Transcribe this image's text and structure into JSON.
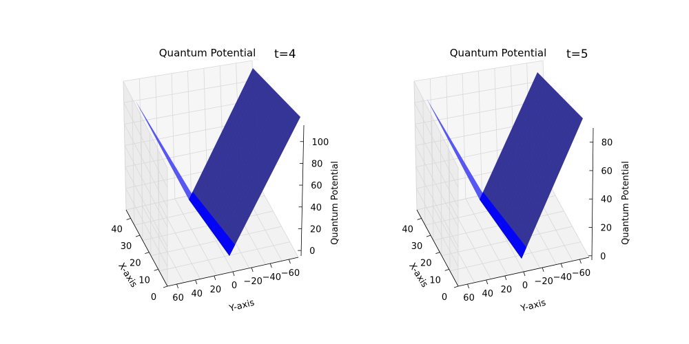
{
  "chart_data": [
    {
      "type": "surface3d",
      "title": "Quantum Potential",
      "annotation": "t=4",
      "xlabel": "X-axis",
      "ylabel": "Y-axis",
      "zlabel": "Quantum Potential",
      "x_ticks": [
        "0",
        "10",
        "20",
        "30",
        "40"
      ],
      "y_ticks": [
        "60",
        "40",
        "20",
        "0",
        "−20",
        "−40",
        "−60"
      ],
      "z_ticks": [
        "0",
        "20",
        "40",
        "60",
        "80",
        "100"
      ],
      "xlim": [
        0,
        45
      ],
      "ylim": [
        -70,
        70
      ],
      "zlim": [
        -5,
        115
      ],
      "surface": {
        "description_formula_values": {
          "z_at_y_min": 118,
          "z_at_y_zero": 0,
          "z_at_y_max": 80
        }
      },
      "colors": {
        "light_face": "#3b3bf5",
        "dark_face": "#2a2a8f",
        "grid": "#d8d8d8",
        "pane": "#f2f2f2"
      }
    },
    {
      "type": "surface3d",
      "title": "Quantum Potential",
      "annotation": "t=5",
      "xlabel": "X-axis",
      "ylabel": "Y-axis",
      "zlabel": "Quantum Potential",
      "x_ticks": [
        "0",
        "10",
        "20",
        "30",
        "40"
      ],
      "y_ticks": [
        "60",
        "40",
        "20",
        "0",
        "−20",
        "−40",
        "−60"
      ],
      "z_ticks": [
        "0",
        "20",
        "40",
        "60",
        "80"
      ],
      "xlim": [
        0,
        45
      ],
      "ylim": [
        -70,
        70
      ],
      "zlim": [
        -3,
        90
      ],
      "surface": {
        "description_formula_values": {
          "z_at_y_min": 92,
          "z_at_y_zero": 0,
          "z_at_y_max": 62
        }
      },
      "colors": {
        "light_face": "#3b3bf5",
        "dark_face": "#2a2a8f",
        "grid": "#d8d8d8",
        "pane": "#f2f2f2"
      }
    }
  ]
}
